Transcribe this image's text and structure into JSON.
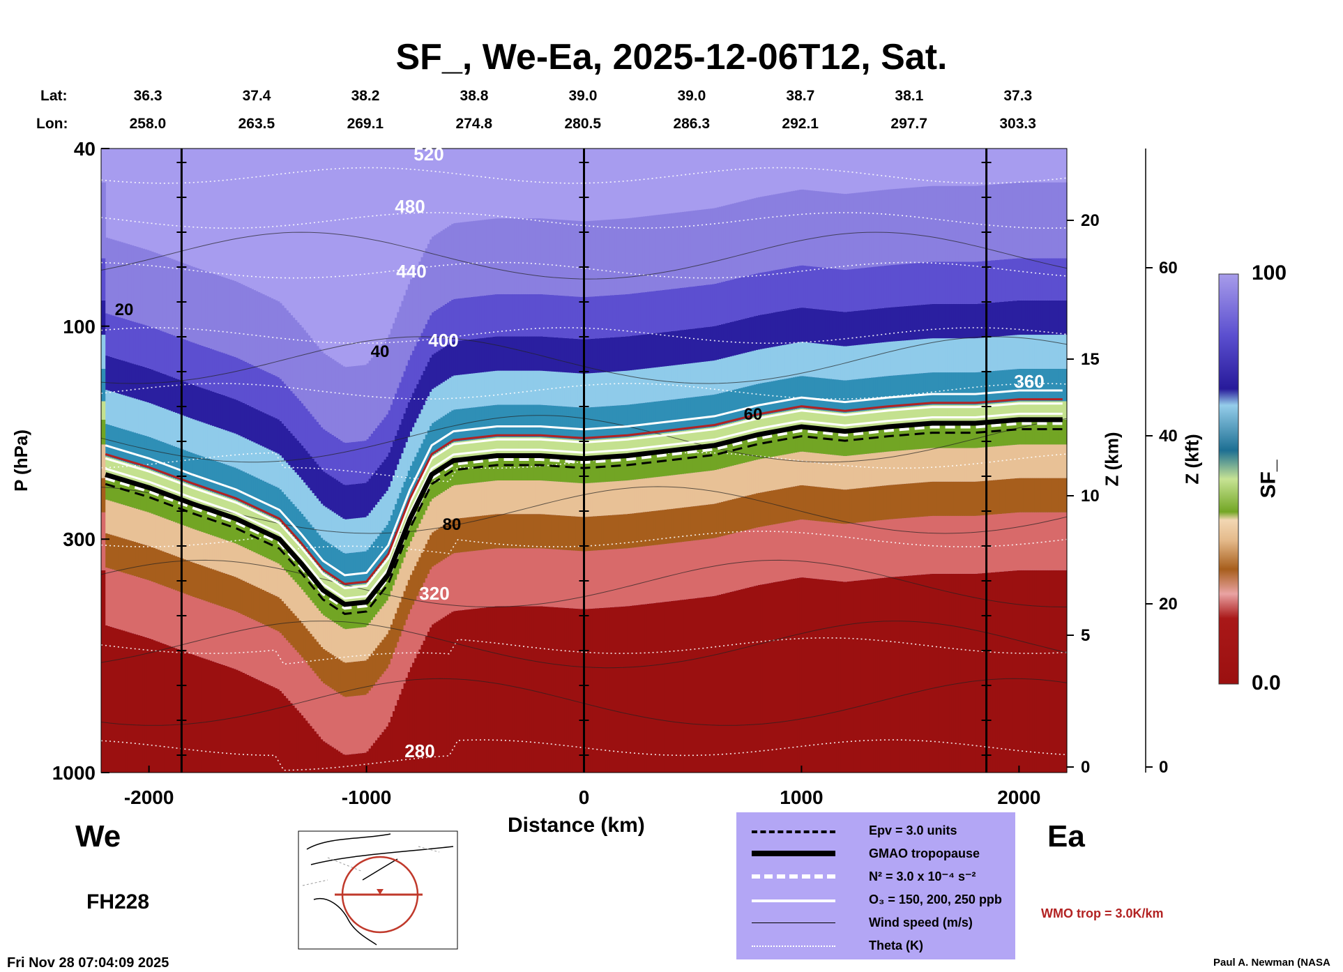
{
  "chart_data": {
    "type": "heatmap",
    "title": "SF_, We-Ea, 2025-12-06T12, Sat.",
    "header": {
      "lat_label": "Lat:",
      "lon_label": "Lon:",
      "lat": [
        "36.3",
        "37.4",
        "38.2",
        "38.8",
        "39.0",
        "39.0",
        "38.7",
        "38.1",
        "37.3"
      ],
      "lon": [
        "258.0",
        "263.5",
        "269.1",
        "274.8",
        "280.5",
        "286.3",
        "292.1",
        "297.7",
        "303.3"
      ]
    },
    "xlabel": "Distance (km)",
    "ylabel": "P (hPa)",
    "xlim": [
      -2220,
      2220
    ],
    "ylim": [
      1000,
      40
    ],
    "y_scale": "log",
    "x_ticks": [
      "-2000",
      "-1000",
      "0",
      "1000",
      "2000"
    ],
    "y_ticks": [
      "40",
      "100",
      "300",
      "1000"
    ],
    "z_km_label": "Z (km)",
    "z_km_ticks": [
      "0",
      "5",
      "10",
      "15",
      "20"
    ],
    "z_kft_label": "Z (kft)",
    "z_kft_ticks": [
      "0",
      "20",
      "40",
      "60"
    ],
    "colorbar": {
      "label": "SF_",
      "min": "0.0",
      "max": "100"
    },
    "tropopause_pressure": {
      "x": [
        -2200,
        -2000,
        -1800,
        -1600,
        -1400,
        -1300,
        -1200,
        -1100,
        -1000,
        -900,
        -800,
        -700,
        -600,
        -400,
        -200,
        0,
        200,
        400,
        600,
        800,
        1000,
        1200,
        1400,
        1600,
        1800,
        2000,
        2200
      ],
      "p": [
        215,
        230,
        250,
        270,
        300,
        340,
        390,
        420,
        415,
        360,
        270,
        215,
        200,
        195,
        195,
        198,
        195,
        190,
        185,
        175,
        168,
        172,
        168,
        165,
        165,
        162,
        162
      ]
    },
    "vertical_lines_km": [
      -1850,
      0,
      1850
    ],
    "theta_labels": [
      "520",
      "480",
      "440",
      "400",
      "360",
      "320",
      "280"
    ],
    "wind_labels": [
      "20",
      "40",
      "60",
      "80"
    ],
    "left_side_label": "We",
    "right_side_label": "Ea",
    "forecast_hour": "FH228",
    "timestamp": "Fri Nov 28 07:04:09 2025",
    "credit": "Paul A. Newman (NASA",
    "wmo_note": "WMO trop = 3.0K/km",
    "legend": [
      {
        "label": "Epv = 3.0 units",
        "style": "dash-black"
      },
      {
        "label": "GMAO tropopause",
        "style": "thick-black"
      },
      {
        "label": "N² = 3.0 x 10⁻⁴ s⁻²",
        "style": "dash-white"
      },
      {
        "label": "O₃ = 150, 200, 250 ppb",
        "style": "solid-white"
      },
      {
        "label": "Wind speed (m/s)",
        "style": "thin-black"
      },
      {
        "label": "Theta (K)",
        "style": "dotted-white"
      }
    ],
    "colors": {
      "low": "#9b1010",
      "high": "#8a7fe0",
      "legend_bg": "#b3a6f5",
      "wmo": "#b22222"
    }
  }
}
